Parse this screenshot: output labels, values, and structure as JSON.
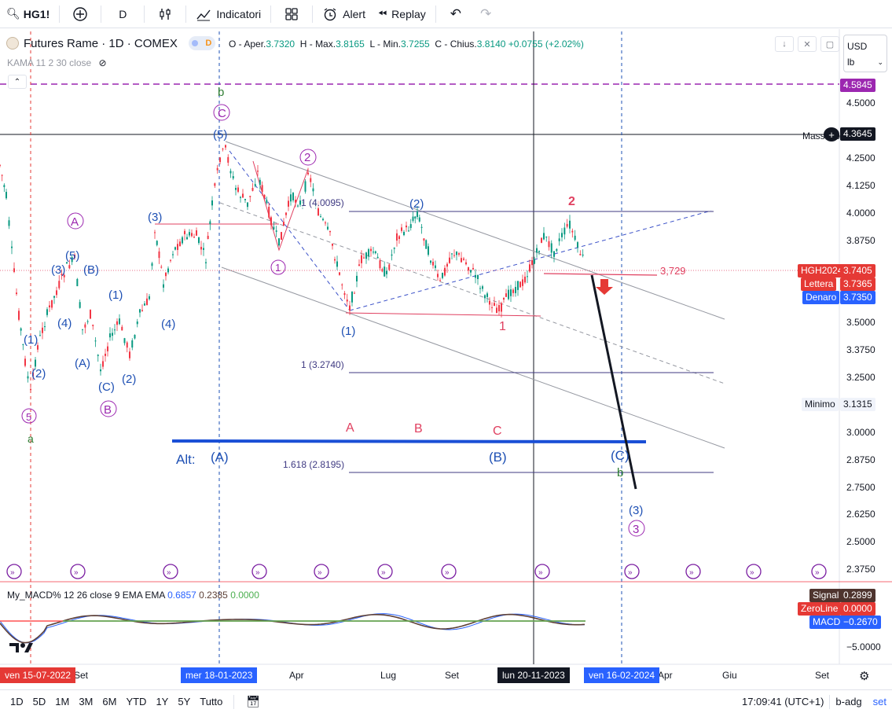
{
  "toolbar": {
    "symbol": "HG1!",
    "interval": "D",
    "indicators": "Indicatori",
    "alert": "Alert",
    "replay": "Replay"
  },
  "legend": {
    "title": "Futures Rame · 1D · COMEX",
    "badge_letter": "D",
    "ohlc_prefix_o": "O - Aper.",
    "open": "3.7320",
    "prefix_h": "H - Max.",
    "high": "3.8165",
    "prefix_l": "L - Min.",
    "low": "3.7255",
    "prefix_c": "C - Chius.",
    "close": "3.8140",
    "change": "+0.0755 (+2.02%)",
    "indicator": "KAMA 11 2 30 close"
  },
  "unit_selector": {
    "currency": "USD",
    "unit": "lb"
  },
  "price_axis": {
    "ticks": [
      "4.5000",
      "4.2500",
      "4.1250",
      "4.0000",
      "3.8750",
      "3.5000",
      "3.3750",
      "3.2500",
      "3.0000",
      "2.8750",
      "2.7500",
      "2.6250",
      "2.5000",
      "2.3750"
    ],
    "alert_price": "4.5845",
    "max_label": "Massimo",
    "max_price": "4.3645",
    "hgh_label": "HGH2024",
    "hgh_price": "3.7405",
    "ask_label": "Lettera",
    "ask_price": "3.7365",
    "bid_label": "Denaro",
    "bid_price": "3.7350",
    "min_label": "Minimo",
    "min_price": "3.1315"
  },
  "annotations": {
    "fib_1_top": "1 (4.0095)",
    "fib_1_bottom": "1 (3.2740)",
    "fib_1618": "1.618 (2.8195)",
    "price_line": "3,729",
    "alt_label": "Alt:",
    "red_a": "A",
    "red_b": "B",
    "red_c": "C",
    "red_1": "1",
    "red_2": "2"
  },
  "macd": {
    "title": "My_MACD% 12 26 close 9 EMA EMA",
    "v1": "0.6857",
    "v2": "0.2385",
    "v3": "0.0000",
    "signal_label": "Signal",
    "signal_value": "0.2899",
    "zero_label": "ZeroLine",
    "zero_value": "0.0000",
    "macd_label": "MACD",
    "macd_value": "−0.2670",
    "tick": "−5.0000"
  },
  "time_axis": {
    "labels": [
      "Set",
      "Apr",
      "Lug",
      "Set",
      "Apr",
      "Giu",
      "Set"
    ],
    "marker_left": "ven 15-07-2022",
    "marker_mid": "mer 18-01-2023",
    "marker_cursor": "lun 20-11-2023",
    "marker_right": "ven 16-02-2024"
  },
  "bottombar": {
    "ranges": [
      "1D",
      "5D",
      "1M",
      "3M",
      "6M",
      "YTD",
      "1Y",
      "5Y",
      "Tutto"
    ],
    "clock": "17:09:41 (UTC+1)",
    "adj": "b-adg",
    "set": "set"
  },
  "colors": {
    "wave_purple": "#9c27b0",
    "wave_blue": "#1e50b4",
    "wave_red": "#e04060",
    "wave_green": "#2e7d32",
    "blue_line": "#1a4fd6"
  }
}
